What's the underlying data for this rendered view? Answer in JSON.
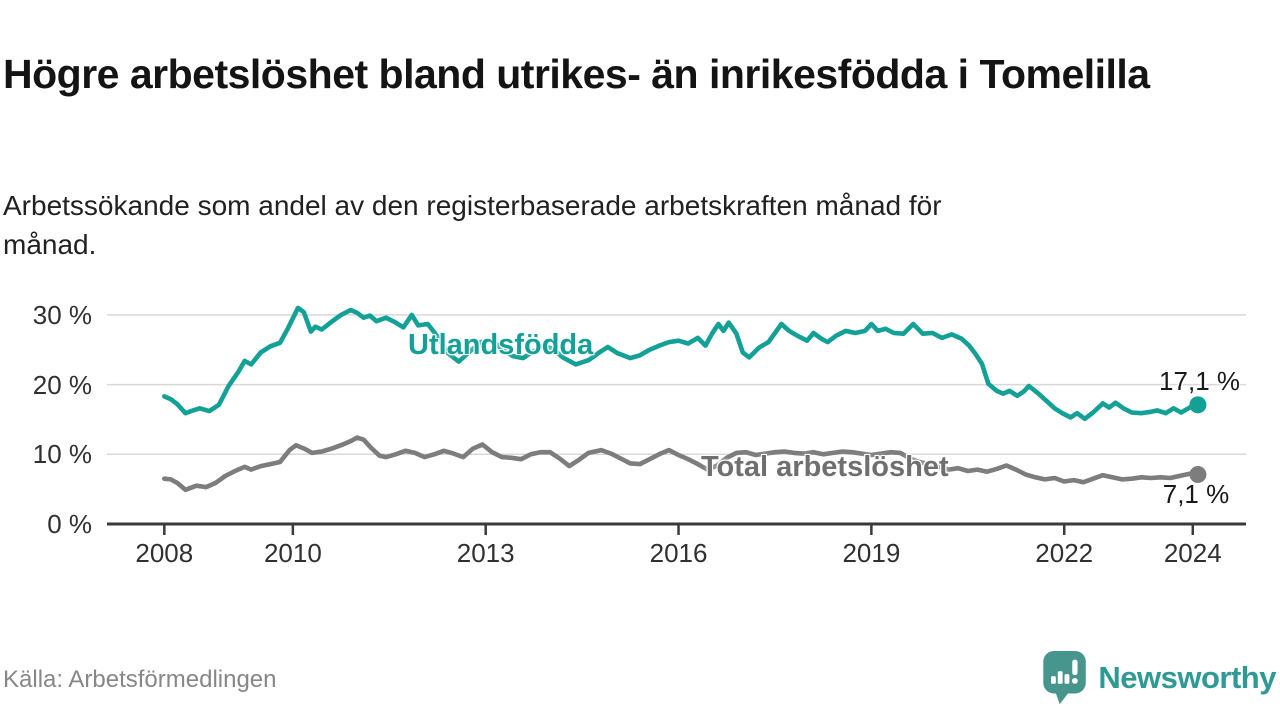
{
  "header": {
    "title": "Högre arbetslöshet bland utrikes- än inrikesfödda i Tomelilla",
    "subtitle": "Arbetssökande som andel av den registerbaserade arbetskraften månad för månad."
  },
  "footer": {
    "source": "Källa: Arbetsförmedlingen",
    "brand": "Newsworthy"
  },
  "colors": {
    "series1": "#12a097",
    "series2": "#7d7d7d",
    "grid": "#d8d8d8",
    "axis": "#3a3a3a",
    "value_label": "#1a1a1a",
    "brand_teal": "#2e9a93",
    "logo_teal": "#47968d"
  },
  "chart_data": {
    "type": "line",
    "title": "Högre arbetslöshet bland utrikes- än inrikesfödda i Tomelilla",
    "subtitle": "Arbetssökande som andel av den registerbaserade arbetskraften månad för månad.",
    "x_unit": "decimal_year",
    "xlim": [
      2007.1,
      2024.85
    ],
    "ylim": [
      0,
      33
    ],
    "grid": "horizontal",
    "legend_position": "inline-labels",
    "x_ticks": [
      2008,
      2010,
      2013,
      2016,
      2019,
      2022,
      2024
    ],
    "x_tick_labels": [
      "2008",
      "2010",
      "2013",
      "2016",
      "2019",
      "2022",
      "2024"
    ],
    "y_ticks": [
      0,
      10,
      20,
      30
    ],
    "y_tick_labels": [
      "0 %",
      "10 %",
      "20 %",
      "30 %"
    ],
    "series": [
      {
        "name": "Utlandsfödda",
        "end_label": "17,1 %",
        "end_value": 17.1,
        "points": [
          [
            2008.0,
            18.3
          ],
          [
            2008.1,
            17.9
          ],
          [
            2008.2,
            17.2
          ],
          [
            2008.33,
            15.9
          ],
          [
            2008.45,
            16.3
          ],
          [
            2008.55,
            16.6
          ],
          [
            2008.7,
            16.2
          ],
          [
            2008.85,
            17.1
          ],
          [
            2009.0,
            19.8
          ],
          [
            2009.15,
            21.8
          ],
          [
            2009.25,
            23.4
          ],
          [
            2009.35,
            22.9
          ],
          [
            2009.5,
            24.6
          ],
          [
            2009.65,
            25.5
          ],
          [
            2009.8,
            26.0
          ],
          [
            2009.92,
            28.0
          ],
          [
            2010.08,
            31.0
          ],
          [
            2010.17,
            30.4
          ],
          [
            2010.28,
            27.6
          ],
          [
            2010.35,
            28.3
          ],
          [
            2010.45,
            27.9
          ],
          [
            2010.6,
            29.0
          ],
          [
            2010.75,
            30.0
          ],
          [
            2010.9,
            30.7
          ],
          [
            2011.0,
            30.3
          ],
          [
            2011.1,
            29.6
          ],
          [
            2011.2,
            29.9
          ],
          [
            2011.3,
            29.1
          ],
          [
            2011.45,
            29.6
          ],
          [
            2011.6,
            28.9
          ],
          [
            2011.72,
            28.2
          ],
          [
            2011.85,
            30.0
          ],
          [
            2011.95,
            28.5
          ],
          [
            2012.1,
            28.7
          ],
          [
            2012.25,
            26.9
          ],
          [
            2012.4,
            24.6
          ],
          [
            2012.58,
            23.3
          ],
          [
            2012.75,
            24.7
          ],
          [
            2012.92,
            26.1
          ],
          [
            2013.1,
            26.4
          ],
          [
            2013.25,
            25.1
          ],
          [
            2013.42,
            24.1
          ],
          [
            2013.58,
            23.8
          ],
          [
            2013.75,
            24.8
          ],
          [
            2013.9,
            25.6
          ],
          [
            2014.05,
            25.1
          ],
          [
            2014.2,
            23.9
          ],
          [
            2014.4,
            22.9
          ],
          [
            2014.6,
            23.5
          ],
          [
            2014.75,
            24.5
          ],
          [
            2014.9,
            25.4
          ],
          [
            2015.05,
            24.5
          ],
          [
            2015.25,
            23.8
          ],
          [
            2015.4,
            24.2
          ],
          [
            2015.55,
            25.0
          ],
          [
            2015.7,
            25.6
          ],
          [
            2015.85,
            26.1
          ],
          [
            2016.0,
            26.3
          ],
          [
            2016.15,
            25.9
          ],
          [
            2016.3,
            26.7
          ],
          [
            2016.42,
            25.6
          ],
          [
            2016.52,
            27.3
          ],
          [
            2016.62,
            28.7
          ],
          [
            2016.7,
            27.7
          ],
          [
            2016.78,
            28.9
          ],
          [
            2016.9,
            27.3
          ],
          [
            2017.0,
            24.6
          ],
          [
            2017.1,
            23.9
          ],
          [
            2017.25,
            25.3
          ],
          [
            2017.4,
            26.1
          ],
          [
            2017.5,
            27.4
          ],
          [
            2017.6,
            28.7
          ],
          [
            2017.72,
            27.7
          ],
          [
            2017.85,
            27.0
          ],
          [
            2018.0,
            26.3
          ],
          [
            2018.1,
            27.4
          ],
          [
            2018.22,
            26.6
          ],
          [
            2018.32,
            26.1
          ],
          [
            2018.45,
            27.0
          ],
          [
            2018.6,
            27.7
          ],
          [
            2018.75,
            27.4
          ],
          [
            2018.9,
            27.7
          ],
          [
            2019.0,
            28.7
          ],
          [
            2019.1,
            27.7
          ],
          [
            2019.22,
            28.0
          ],
          [
            2019.35,
            27.4
          ],
          [
            2019.5,
            27.3
          ],
          [
            2019.65,
            28.7
          ],
          [
            2019.8,
            27.3
          ],
          [
            2019.95,
            27.4
          ],
          [
            2020.1,
            26.7
          ],
          [
            2020.25,
            27.2
          ],
          [
            2020.4,
            26.6
          ],
          [
            2020.52,
            25.6
          ],
          [
            2020.62,
            24.4
          ],
          [
            2020.72,
            23.0
          ],
          [
            2020.82,
            20.1
          ],
          [
            2020.95,
            19.1
          ],
          [
            2021.05,
            18.7
          ],
          [
            2021.15,
            19.1
          ],
          [
            2021.27,
            18.4
          ],
          [
            2021.37,
            19.0
          ],
          [
            2021.45,
            19.8
          ],
          [
            2021.6,
            18.7
          ],
          [
            2021.72,
            17.7
          ],
          [
            2021.85,
            16.6
          ],
          [
            2021.97,
            15.9
          ],
          [
            2022.1,
            15.3
          ],
          [
            2022.2,
            15.9
          ],
          [
            2022.32,
            15.1
          ],
          [
            2022.45,
            16.0
          ],
          [
            2022.6,
            17.3
          ],
          [
            2022.7,
            16.7
          ],
          [
            2022.8,
            17.4
          ],
          [
            2022.92,
            16.6
          ],
          [
            2023.05,
            16.0
          ],
          [
            2023.2,
            15.9
          ],
          [
            2023.35,
            16.1
          ],
          [
            2023.45,
            16.3
          ],
          [
            2023.58,
            15.9
          ],
          [
            2023.7,
            16.6
          ],
          [
            2023.82,
            16.0
          ],
          [
            2023.95,
            16.7
          ],
          [
            2024.08,
            17.1
          ]
        ]
      },
      {
        "name": "Total arbetslöshet",
        "end_label": "7,1 %",
        "end_value": 7.1,
        "points": [
          [
            2008.0,
            6.5
          ],
          [
            2008.1,
            6.4
          ],
          [
            2008.2,
            5.9
          ],
          [
            2008.33,
            4.9
          ],
          [
            2008.5,
            5.5
          ],
          [
            2008.65,
            5.3
          ],
          [
            2008.8,
            5.9
          ],
          [
            2008.95,
            6.9
          ],
          [
            2009.1,
            7.6
          ],
          [
            2009.25,
            8.2
          ],
          [
            2009.35,
            7.8
          ],
          [
            2009.5,
            8.3
          ],
          [
            2009.65,
            8.6
          ],
          [
            2009.8,
            8.9
          ],
          [
            2009.95,
            10.6
          ],
          [
            2010.05,
            11.3
          ],
          [
            2010.18,
            10.8
          ],
          [
            2010.3,
            10.2
          ],
          [
            2010.45,
            10.4
          ],
          [
            2010.6,
            10.8
          ],
          [
            2010.75,
            11.3
          ],
          [
            2010.9,
            11.9
          ],
          [
            2011.0,
            12.4
          ],
          [
            2011.1,
            12.1
          ],
          [
            2011.22,
            10.9
          ],
          [
            2011.35,
            9.8
          ],
          [
            2011.45,
            9.6
          ],
          [
            2011.6,
            10.0
          ],
          [
            2011.75,
            10.5
          ],
          [
            2011.9,
            10.2
          ],
          [
            2012.05,
            9.6
          ],
          [
            2012.2,
            10.0
          ],
          [
            2012.35,
            10.5
          ],
          [
            2012.5,
            10.1
          ],
          [
            2012.65,
            9.6
          ],
          [
            2012.8,
            10.8
          ],
          [
            2012.95,
            11.4
          ],
          [
            2013.1,
            10.3
          ],
          [
            2013.25,
            9.6
          ],
          [
            2013.4,
            9.5
          ],
          [
            2013.55,
            9.3
          ],
          [
            2013.7,
            10.0
          ],
          [
            2013.85,
            10.3
          ],
          [
            2014.0,
            10.3
          ],
          [
            2014.15,
            9.4
          ],
          [
            2014.3,
            8.3
          ],
          [
            2014.45,
            9.2
          ],
          [
            2014.6,
            10.2
          ],
          [
            2014.8,
            10.6
          ],
          [
            2014.95,
            10.1
          ],
          [
            2015.1,
            9.4
          ],
          [
            2015.25,
            8.7
          ],
          [
            2015.4,
            8.6
          ],
          [
            2015.55,
            9.3
          ],
          [
            2015.72,
            10.1
          ],
          [
            2015.85,
            10.6
          ],
          [
            2016.0,
            9.9
          ],
          [
            2016.15,
            9.3
          ],
          [
            2016.3,
            8.6
          ],
          [
            2016.45,
            7.8
          ],
          [
            2016.6,
            8.4
          ],
          [
            2016.75,
            9.5
          ],
          [
            2016.9,
            10.2
          ],
          [
            2017.05,
            10.3
          ],
          [
            2017.2,
            9.9
          ],
          [
            2017.35,
            10.1
          ],
          [
            2017.5,
            10.3
          ],
          [
            2017.65,
            10.4
          ],
          [
            2017.8,
            10.2
          ],
          [
            2017.95,
            10.1
          ],
          [
            2018.1,
            10.3
          ],
          [
            2018.25,
            10.0
          ],
          [
            2018.4,
            10.2
          ],
          [
            2018.55,
            10.4
          ],
          [
            2018.7,
            10.3
          ],
          [
            2018.85,
            10.1
          ],
          [
            2019.0,
            9.9
          ],
          [
            2019.15,
            10.1
          ],
          [
            2019.3,
            10.3
          ],
          [
            2019.45,
            10.2
          ],
          [
            2019.6,
            9.4
          ],
          [
            2019.75,
            8.9
          ],
          [
            2019.9,
            8.6
          ],
          [
            2020.05,
            8.2
          ],
          [
            2020.2,
            7.8
          ],
          [
            2020.35,
            8.0
          ],
          [
            2020.5,
            7.6
          ],
          [
            2020.65,
            7.8
          ],
          [
            2020.8,
            7.5
          ],
          [
            2020.95,
            7.9
          ],
          [
            2021.1,
            8.4
          ],
          [
            2021.25,
            7.8
          ],
          [
            2021.4,
            7.1
          ],
          [
            2021.55,
            6.7
          ],
          [
            2021.7,
            6.4
          ],
          [
            2021.85,
            6.6
          ],
          [
            2022.0,
            6.1
          ],
          [
            2022.15,
            6.3
          ],
          [
            2022.3,
            6.0
          ],
          [
            2022.45,
            6.5
          ],
          [
            2022.6,
            7.0
          ],
          [
            2022.75,
            6.7
          ],
          [
            2022.9,
            6.4
          ],
          [
            2023.05,
            6.5
          ],
          [
            2023.2,
            6.7
          ],
          [
            2023.35,
            6.6
          ],
          [
            2023.5,
            6.7
          ],
          [
            2023.65,
            6.6
          ],
          [
            2023.8,
            6.9
          ],
          [
            2023.95,
            7.2
          ],
          [
            2024.08,
            7.1
          ]
        ]
      }
    ]
  }
}
